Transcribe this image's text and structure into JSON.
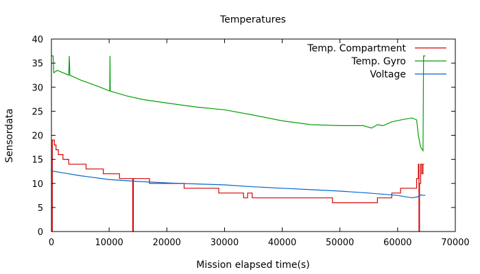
{
  "chart_data": {
    "type": "line",
    "title": "Temperatures",
    "xlabel": "Mission elapsed time(s)",
    "ylabel": "Sensordata",
    "xlim": [
      0,
      70000
    ],
    "ylim": [
      0,
      40
    ],
    "xticks": [
      0,
      10000,
      20000,
      30000,
      40000,
      50000,
      60000,
      70000
    ],
    "yticks": [
      0,
      5,
      10,
      15,
      20,
      25,
      30,
      35,
      40
    ],
    "grid": false,
    "legend_position": "top-right",
    "series": [
      {
        "name": "Temp. Compartment",
        "color": "#d40000",
        "step": true,
        "points": [
          [
            0,
            0
          ],
          [
            150,
            0
          ],
          [
            150,
            19
          ],
          [
            500,
            19
          ],
          [
            500,
            18
          ],
          [
            800,
            18
          ],
          [
            800,
            17
          ],
          [
            1200,
            17
          ],
          [
            1200,
            16
          ],
          [
            2000,
            16
          ],
          [
            2000,
            15
          ],
          [
            3000,
            15
          ],
          [
            3000,
            14
          ],
          [
            6000,
            14
          ],
          [
            6000,
            13
          ],
          [
            9000,
            13
          ],
          [
            9000,
            12
          ],
          [
            11800,
            12
          ],
          [
            11800,
            11
          ],
          [
            14100,
            11
          ],
          [
            14100,
            0
          ],
          [
            14200,
            0
          ],
          [
            14200,
            11
          ],
          [
            17000,
            11
          ],
          [
            17000,
            10
          ],
          [
            23000,
            10
          ],
          [
            23000,
            9
          ],
          [
            29000,
            9
          ],
          [
            29000,
            8
          ],
          [
            33300,
            8
          ],
          [
            33300,
            7
          ],
          [
            34000,
            7
          ],
          [
            34000,
            8
          ],
          [
            34800,
            8
          ],
          [
            34800,
            7
          ],
          [
            48700,
            7
          ],
          [
            48700,
            6
          ],
          [
            56500,
            6
          ],
          [
            56500,
            7
          ],
          [
            59000,
            7
          ],
          [
            59000,
            8
          ],
          [
            60500,
            8
          ],
          [
            60500,
            9
          ],
          [
            63300,
            9
          ],
          [
            63300,
            11
          ],
          [
            63600,
            11
          ],
          [
            63600,
            14
          ],
          [
            63700,
            14
          ],
          [
            63700,
            0
          ],
          [
            63800,
            0
          ],
          [
            63800,
            10
          ],
          [
            64000,
            10
          ],
          [
            64000,
            14
          ],
          [
            64200,
            14
          ],
          [
            64200,
            12
          ],
          [
            64400,
            12
          ],
          [
            64400,
            14
          ],
          [
            64600,
            14
          ]
        ]
      },
      {
        "name": "Temp. Gyro",
        "color": "#00a000",
        "step": false,
        "points": [
          [
            0,
            36.5
          ],
          [
            300,
            36.5
          ],
          [
            400,
            33
          ],
          [
            1000,
            33.5
          ],
          [
            2000,
            33
          ],
          [
            3000,
            32.5
          ],
          [
            3100,
            36.5
          ],
          [
            3200,
            32.5
          ],
          [
            5000,
            31.5
          ],
          [
            8000,
            30.2
          ],
          [
            10100,
            29.2
          ],
          [
            10150,
            36.5
          ],
          [
            10200,
            29.2
          ],
          [
            13000,
            28.2
          ],
          [
            16000,
            27.4
          ],
          [
            20000,
            26.7
          ],
          [
            25000,
            25.9
          ],
          [
            30000,
            25.3
          ],
          [
            35000,
            24.2
          ],
          [
            40000,
            23.0
          ],
          [
            45000,
            22.2
          ],
          [
            50000,
            22.0
          ],
          [
            54000,
            22.0
          ],
          [
            55500,
            21.5
          ],
          [
            56500,
            22.2
          ],
          [
            57500,
            22.0
          ],
          [
            59000,
            22.8
          ],
          [
            61000,
            23.3
          ],
          [
            62500,
            23.6
          ],
          [
            63300,
            23.2
          ],
          [
            63600,
            20
          ],
          [
            64000,
            17.5
          ],
          [
            64400,
            16.8
          ],
          [
            64500,
            36.5
          ],
          [
            64800,
            36.5
          ]
        ]
      },
      {
        "name": "Voltage",
        "color": "#0066cc",
        "step": false,
        "points": [
          [
            0,
            12.6
          ],
          [
            2000,
            12.2
          ],
          [
            5000,
            11.6
          ],
          [
            10000,
            10.8
          ],
          [
            15000,
            10.4
          ],
          [
            20000,
            10.1
          ],
          [
            25000,
            9.9
          ],
          [
            30000,
            9.7
          ],
          [
            35000,
            9.3
          ],
          [
            40000,
            9.0
          ],
          [
            45000,
            8.7
          ],
          [
            50000,
            8.4
          ],
          [
            55000,
            8.0
          ],
          [
            60000,
            7.5
          ],
          [
            62500,
            7.0
          ],
          [
            63500,
            7.2
          ],
          [
            64000,
            7.6
          ],
          [
            64800,
            7.5
          ]
        ]
      }
    ]
  }
}
